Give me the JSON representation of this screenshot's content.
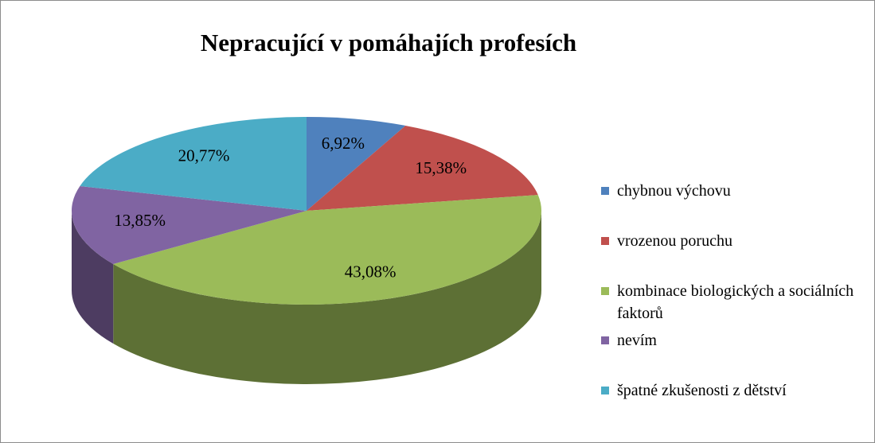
{
  "chart_data": {
    "type": "pie",
    "title": "Nepracující v pomáhajích profesích",
    "categories": [
      "chybnou výchovu",
      "vrozenou poruchu",
      "kombinace biologických a sociálních faktorů",
      "nevím",
      "špatné zkušenosti z dětství"
    ],
    "values": [
      6.92,
      15.38,
      43.08,
      13.85,
      20.77
    ],
    "value_labels": [
      "6,92%",
      "15,38%",
      "43,08%",
      "13,85%",
      "20,77%"
    ],
    "colors": [
      "#4f81bd",
      "#c0504d",
      "#9bbb59",
      "#8064a2",
      "#4bacc6"
    ],
    "legend": "right"
  }
}
